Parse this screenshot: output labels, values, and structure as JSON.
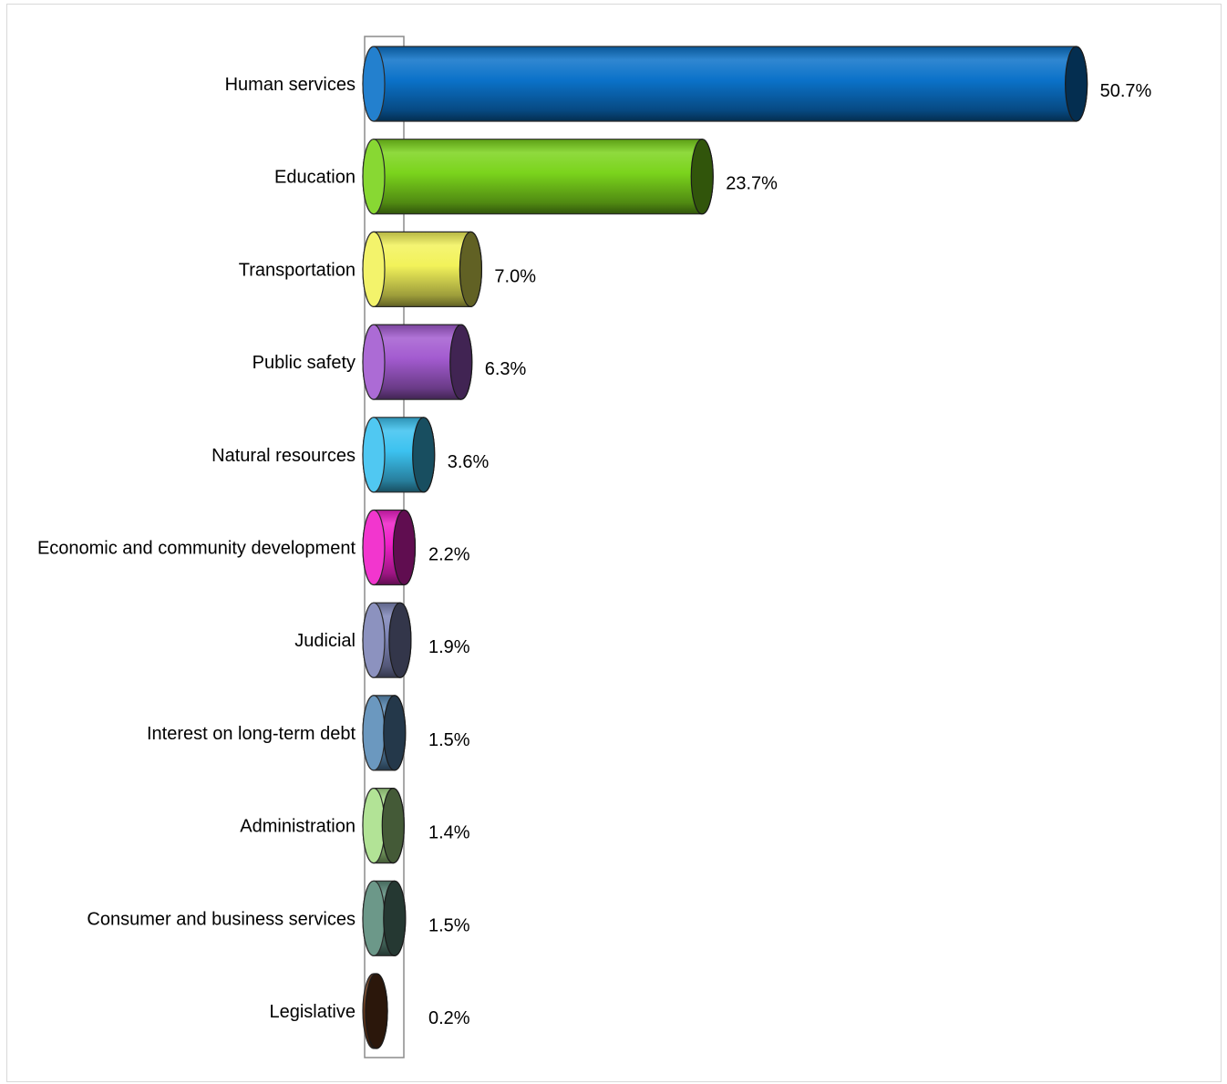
{
  "chart_data": {
    "type": "bar",
    "orientation": "horizontal",
    "style": "3d-cylinder",
    "title": "",
    "xlabel": "",
    "ylabel": "",
    "xlim": [
      0,
      52
    ],
    "grid": false,
    "legend": "none",
    "categories": [
      "Human services",
      "Education",
      "Transportation",
      "Public safety",
      "Natural resources",
      "Economic and community development",
      "Judicial",
      "Interest on long-term debt",
      "Administration",
      "Consumer and business services",
      "Legislative"
    ],
    "values": [
      50.7,
      23.7,
      7.0,
      6.3,
      3.6,
      2.2,
      1.9,
      1.5,
      1.4,
      1.5,
      0.2
    ],
    "data_labels": [
      "50.7%",
      "23.7%",
      "7.0%",
      "6.3%",
      "3.6%",
      "2.2%",
      "1.9%",
      "1.5%",
      "1.4%",
      "1.5%",
      "0.2%"
    ],
    "colors": [
      "#0b72c9",
      "#7bd41c",
      "#f2f25a",
      "#a35bd0",
      "#3cc2f0",
      "#f020c8",
      "#7f86b8",
      "#5b8db8",
      "#a9e08a",
      "#5c8c7c",
      "#6b3a1c"
    ]
  }
}
